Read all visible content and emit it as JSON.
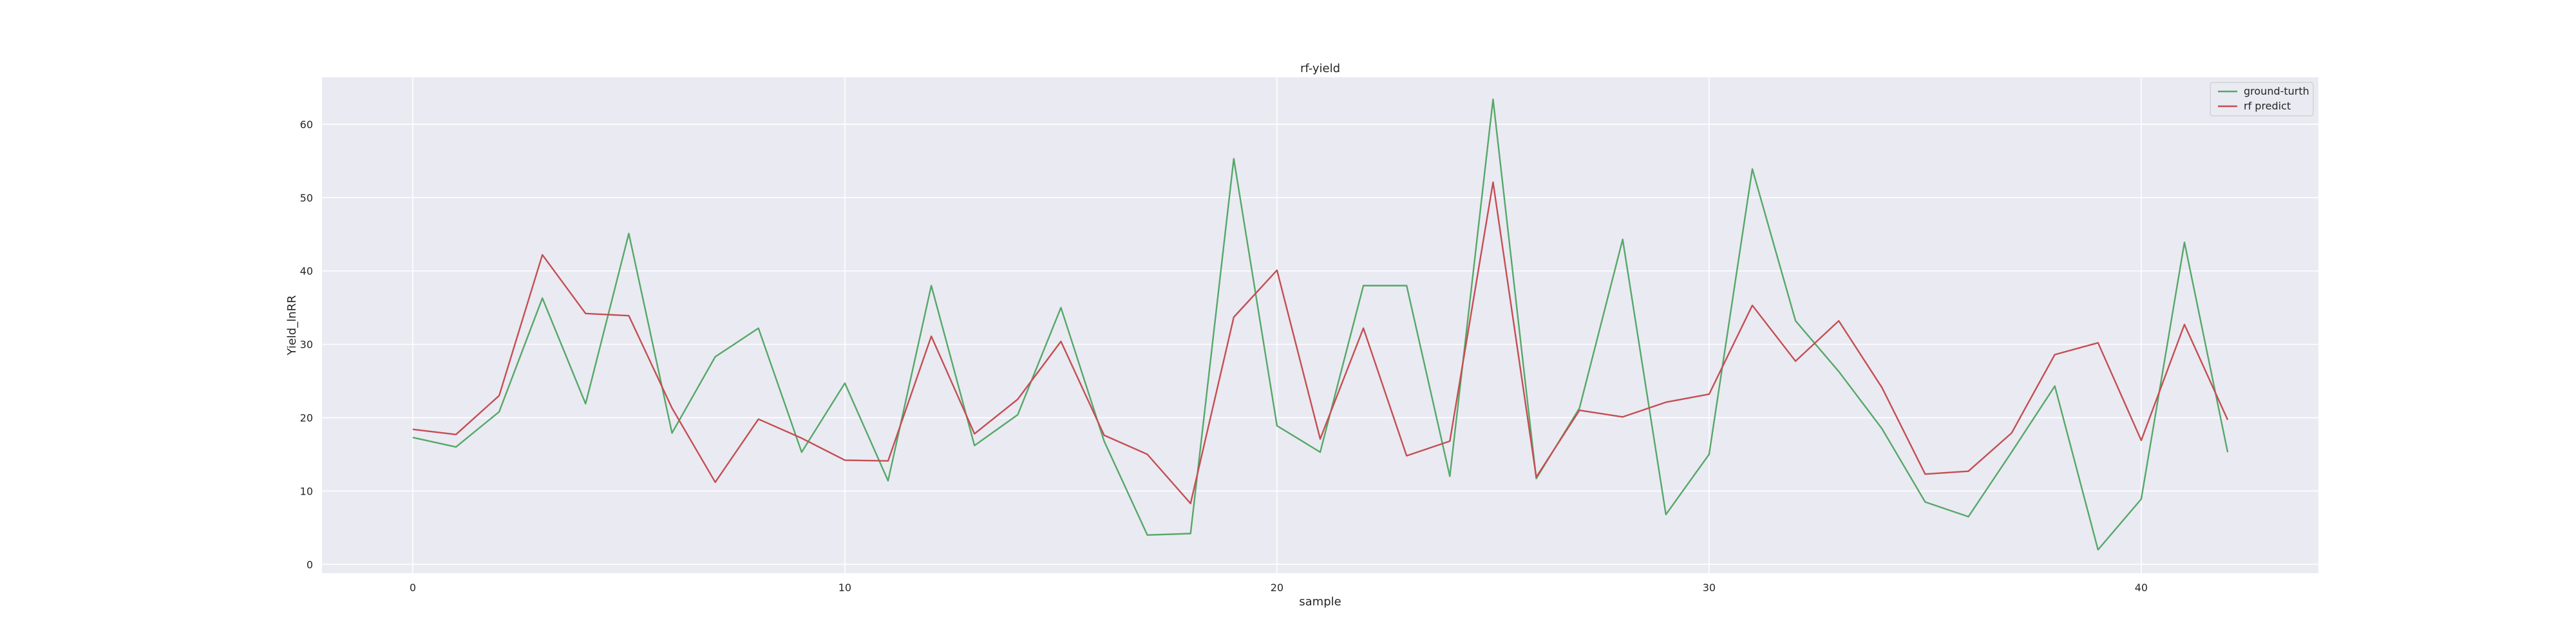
{
  "chart_data": {
    "type": "line",
    "title": "rf-yield",
    "xlabel": "sample",
    "ylabel": "Yield_lnRR",
    "xlim": [
      -2.1,
      44.1
    ],
    "ylim": [
      -1.2,
      66.4
    ],
    "xticks": [
      0,
      10,
      20,
      30,
      40
    ],
    "yticks": [
      0,
      10,
      20,
      30,
      40,
      50,
      60
    ],
    "grid": true,
    "legend_position": "top-right",
    "background_color": "#eaeaf2",
    "series": [
      {
        "name": "ground-turth",
        "color": "#55a868",
        "x": [
          0,
          1,
          2,
          3,
          4,
          5,
          6,
          7,
          8,
          9,
          10,
          11,
          12,
          13,
          14,
          15,
          16,
          17,
          18,
          19,
          20,
          21,
          22,
          23,
          24,
          25,
          26,
          27,
          28,
          29,
          30,
          31,
          32,
          33,
          34,
          35,
          36,
          37,
          38,
          39,
          40,
          41,
          42
        ],
        "values": [
          17.3,
          16.0,
          20.8,
          36.3,
          21.9,
          45.1,
          17.9,
          28.3,
          32.2,
          15.3,
          24.7,
          11.4,
          38.0,
          16.2,
          20.4,
          35.0,
          16.8,
          4.0,
          4.2,
          55.3,
          18.9,
          15.3,
          38.0,
          38.0,
          12.0,
          63.4,
          11.7,
          21.3,
          44.3,
          6.8,
          15.0,
          53.9,
          33.2,
          26.3,
          18.5,
          8.5,
          6.5,
          15.3,
          24.3,
          2.0,
          8.9,
          43.9,
          15.3
        ]
      },
      {
        "name": "rf predict",
        "color": "#c44e52",
        "x": [
          0,
          1,
          2,
          3,
          4,
          5,
          6,
          7,
          8,
          9,
          10,
          11,
          12,
          13,
          14,
          15,
          16,
          17,
          18,
          19,
          20,
          21,
          22,
          23,
          24,
          25,
          26,
          27,
          28,
          29,
          30,
          31,
          32,
          33,
          34,
          35,
          36,
          37,
          38,
          39,
          40,
          41,
          42
        ],
        "values": [
          18.4,
          17.7,
          23.0,
          42.2,
          34.2,
          33.9,
          21.3,
          11.2,
          19.8,
          17.2,
          14.2,
          14.1,
          31.1,
          17.8,
          22.5,
          30.4,
          17.6,
          15.0,
          8.3,
          33.7,
          40.1,
          17.1,
          32.2,
          14.8,
          16.8,
          52.1,
          11.9,
          21.0,
          20.1,
          22.1,
          23.2,
          35.3,
          27.7,
          33.2,
          24.1,
          12.3,
          12.7,
          17.9,
          28.6,
          30.2,
          16.9,
          32.7,
          19.7
        ]
      }
    ]
  }
}
